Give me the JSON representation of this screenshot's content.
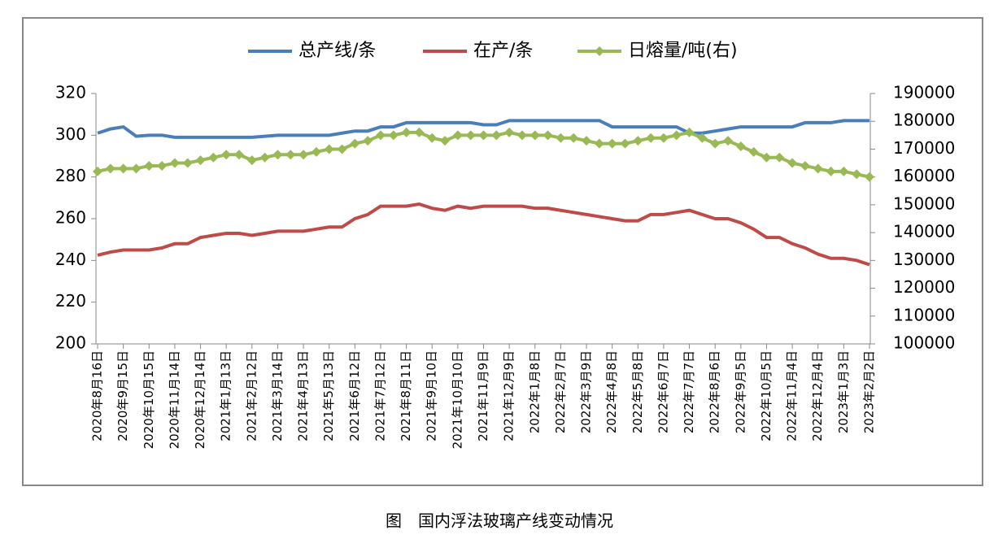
{
  "chart_data": {
    "type": "line",
    "caption": "图　国内浮法玻璃产线变动情况",
    "categories": [
      "2020年8月16日",
      null,
      "2020年9月15日",
      null,
      "2020年10月15日",
      null,
      "2020年11月14日",
      null,
      "2020年12月14日",
      null,
      "2021年1月13日",
      null,
      "2021年2月12日",
      null,
      "2021年3月14日",
      null,
      "2021年4月13日",
      null,
      "2021年5月13日",
      null,
      "2021年6月12日",
      null,
      "2021年7月12日",
      null,
      "2021年8月11日",
      null,
      "2021年9月10日",
      null,
      "2021年10月10日",
      null,
      "2021年11月9日",
      null,
      "2021年12月9日",
      null,
      "2022年1月8日",
      null,
      "2022年2月7日",
      null,
      "2022年3月9日",
      null,
      "2022年4月8日",
      null,
      "2022年5月8日",
      null,
      "2022年6月7日",
      null,
      "2022年7月7日",
      null,
      "2022年8月6日",
      null,
      "2022年9月5日",
      null,
      "2022年10月5日",
      null,
      "2022年11月4日",
      null,
      "2022年12月4日",
      null,
      "2023年1月3日",
      null,
      "2023年2月2日"
    ],
    "series": [
      {
        "name": "总产线/条",
        "color": "#4a7ebb",
        "axis": "y",
        "values": [
          301,
          303,
          304,
          299.5,
          300,
          300,
          299,
          299,
          299,
          299,
          299,
          299,
          299,
          299.5,
          300,
          300,
          300,
          300,
          300,
          301,
          302,
          302,
          304,
          304,
          306,
          306,
          306,
          306,
          306,
          306,
          305,
          305,
          307,
          307,
          307,
          307,
          307,
          307,
          307,
          307,
          304,
          304,
          304,
          304,
          304,
          304,
          301,
          301,
          302,
          303,
          304,
          304,
          304,
          304,
          304,
          306,
          306,
          306,
          307,
          307,
          307
        ]
      },
      {
        "name": "在产/条",
        "color": "#be4b48",
        "axis": "y",
        "values": [
          242.5,
          244,
          245,
          245,
          245,
          246,
          248,
          248,
          251,
          252,
          253,
          253,
          252,
          253,
          254,
          254,
          254,
          255,
          256,
          256,
          260,
          262,
          266,
          266,
          266,
          267,
          265,
          264,
          266,
          265,
          266,
          266,
          266,
          266,
          265,
          265,
          264,
          263,
          262,
          261,
          260,
          259,
          259,
          262,
          262,
          263,
          264,
          262,
          260,
          260,
          258,
          255,
          251,
          251,
          248,
          246,
          243,
          241,
          241,
          240,
          238
        ]
      },
      {
        "name": "日熔量/吨(右)",
        "color": "#98b954",
        "axis": "y2",
        "values": [
          162000,
          163000,
          163000,
          163000,
          164000,
          164000,
          165000,
          165000,
          166000,
          167000,
          168000,
          168000,
          166000,
          167000,
          168000,
          168000,
          168000,
          169000,
          170000,
          170000,
          172000,
          173000,
          175000,
          175000,
          176000,
          176000,
          174000,
          173000,
          175000,
          175000,
          175000,
          175000,
          176000,
          175000,
          175000,
          175000,
          174000,
          174000,
          173000,
          172000,
          172000,
          172000,
          173000,
          174000,
          174000,
          175000,
          176000,
          174000,
          172000,
          173000,
          171000,
          169000,
          167000,
          167000,
          165000,
          164000,
          163000,
          162000,
          162000,
          161000,
          160000
        ]
      }
    ],
    "ylim": [
      200,
      320
    ],
    "yticks": [
      200,
      220,
      240,
      260,
      280,
      300,
      320
    ],
    "y2lim": [
      100000,
      190000
    ],
    "y2ticks": [
      100000,
      110000,
      120000,
      130000,
      140000,
      150000,
      160000,
      170000,
      180000,
      190000
    ],
    "legend": "top"
  }
}
